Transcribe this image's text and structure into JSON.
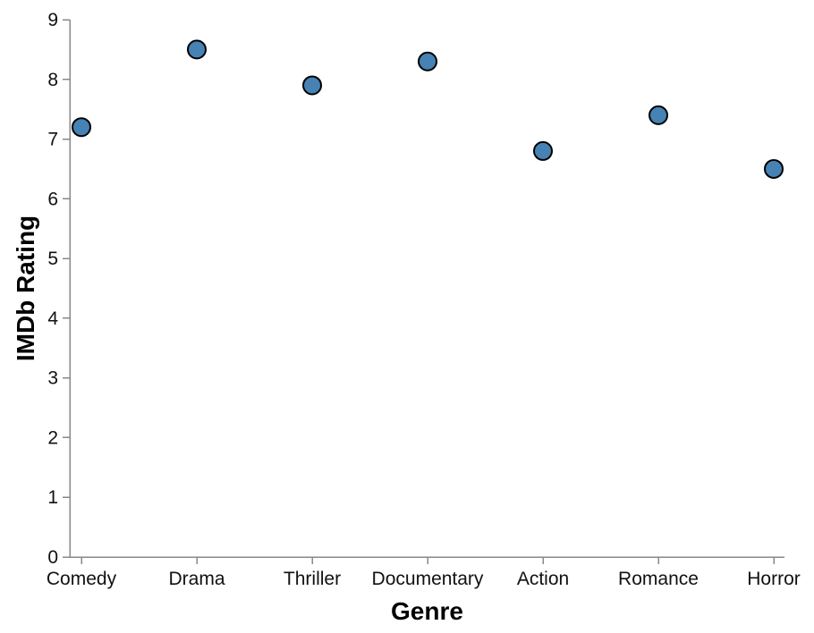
{
  "chart_data": {
    "type": "scatter",
    "xlabel": "Genre",
    "ylabel": "IMDb Rating",
    "categories": [
      "Comedy",
      "Drama",
      "Thriller",
      "Documentary",
      "Action",
      "Romance",
      "Horror"
    ],
    "values": [
      7.2,
      8.5,
      7.9,
      8.3,
      6.8,
      7.4,
      6.5
    ],
    "ylim": [
      0,
      9
    ],
    "yticks": [
      0,
      1,
      2,
      3,
      4,
      5,
      6,
      7,
      8,
      9
    ],
    "grid": false,
    "legend": "none",
    "colors": {
      "point_fill": "#4682b4",
      "point_stroke": "#000000",
      "axis": "#888888",
      "text": "#111111"
    }
  }
}
